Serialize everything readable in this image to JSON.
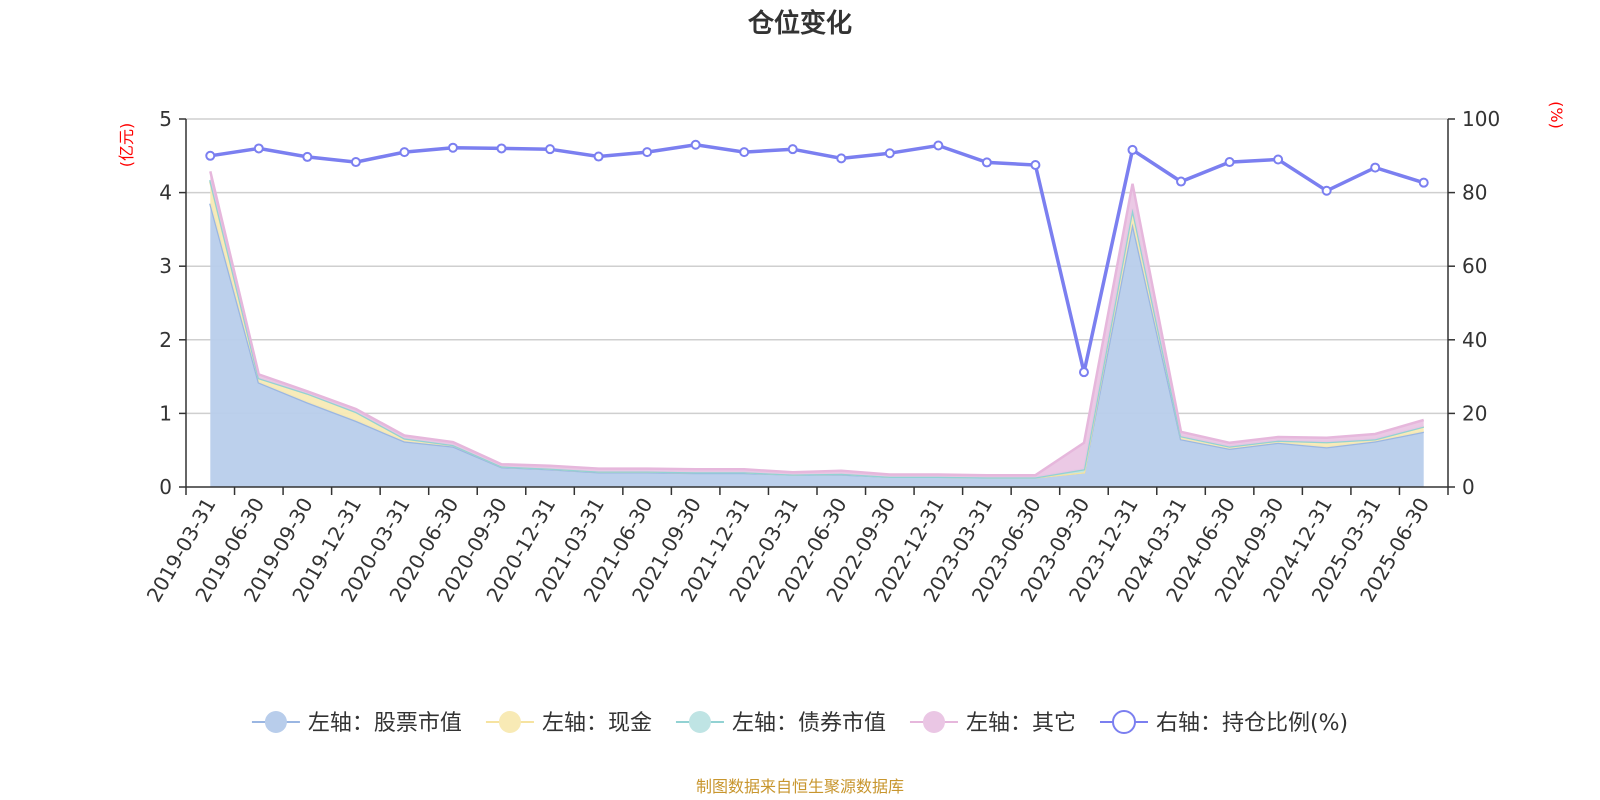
{
  "chart_data": {
    "type": "area",
    "title": "仓位变化",
    "left_axis_unit": "(亿元)",
    "right_axis_unit": "(%)",
    "left_ylim": [
      0,
      5
    ],
    "left_yticks": [
      "0",
      "1",
      "2",
      "3",
      "4",
      "5"
    ],
    "right_ylim": [
      0,
      100
    ],
    "right_yticks": [
      "0",
      "20",
      "40",
      "60",
      "80",
      "100"
    ],
    "grid": true,
    "legend_position": "bottom",
    "categories": [
      "2019-03-31",
      "2019-06-30",
      "2019-09-30",
      "2019-12-31",
      "2020-03-31",
      "2020-06-30",
      "2020-09-30",
      "2020-12-31",
      "2021-03-31",
      "2021-06-30",
      "2021-09-30",
      "2021-12-31",
      "2022-03-31",
      "2022-06-30",
      "2022-09-30",
      "2022-12-31",
      "2023-03-31",
      "2023-06-30",
      "2023-09-30",
      "2023-12-31",
      "2024-03-31",
      "2024-06-30",
      "2024-09-30",
      "2024-12-31",
      "2025-03-31",
      "2025-06-30"
    ],
    "stacked_series": [
      {
        "name": "左轴：股票市值",
        "color": "#9ab6e2",
        "fill": "#b8cdeb",
        "values": [
          3.85,
          1.42,
          1.15,
          0.9,
          0.62,
          0.55,
          0.27,
          0.24,
          0.2,
          0.2,
          0.19,
          0.19,
          0.17,
          0.17,
          0.14,
          0.14,
          0.13,
          0.13,
          0.2,
          3.58,
          0.65,
          0.52,
          0.6,
          0.54,
          0.62,
          0.75
        ]
      },
      {
        "name": "左轴：现金",
        "color": "#f6e3a0",
        "fill": "#f8eab5",
        "values": [
          0.3,
          0.06,
          0.12,
          0.12,
          0.04,
          0.02,
          0.01,
          0.01,
          0.01,
          0.01,
          0.01,
          0.01,
          0.0,
          0.01,
          0.0,
          0.0,
          0.0,
          0.0,
          0.0,
          0.2,
          0.04,
          0.03,
          0.03,
          0.07,
          0.03,
          0.07
        ]
      },
      {
        "name": "左轴：债券市值",
        "color": "#92d2d3",
        "fill": "#bfe4e4",
        "values": [
          0.02,
          0.0,
          0.0,
          0.0,
          0.0,
          0.0,
          0.0,
          0.0,
          0.0,
          0.0,
          0.0,
          0.0,
          0.0,
          0.0,
          0.0,
          0.0,
          0.0,
          0.0,
          0.04,
          0.0,
          0.0,
          0.0,
          0.0,
          0.0,
          0.0,
          0.0
        ]
      },
      {
        "name": "左轴：其它",
        "color": "#e6b7dc",
        "fill": "#eac6e4",
        "values": [
          0.12,
          0.05,
          0.03,
          0.04,
          0.04,
          0.04,
          0.03,
          0.04,
          0.04,
          0.04,
          0.04,
          0.04,
          0.03,
          0.04,
          0.03,
          0.03,
          0.03,
          0.03,
          0.36,
          0.34,
          0.06,
          0.05,
          0.05,
          0.06,
          0.07,
          0.09
        ]
      }
    ],
    "line_series": {
      "name": "右轴：持仓比例(%)",
      "color": "#7b7ff0",
      "axis": "right",
      "values": [
        90,
        92,
        89.7,
        88.3,
        91,
        92.2,
        92,
        91.8,
        89.8,
        91,
        93,
        91,
        91.8,
        89.3,
        90.7,
        92.8,
        88.2,
        87.5,
        31.2,
        91.6,
        83,
        88.3,
        89,
        80.5,
        86.8,
        82.7
      ]
    }
  },
  "footer": "制图数据来自恒生聚源数据库"
}
